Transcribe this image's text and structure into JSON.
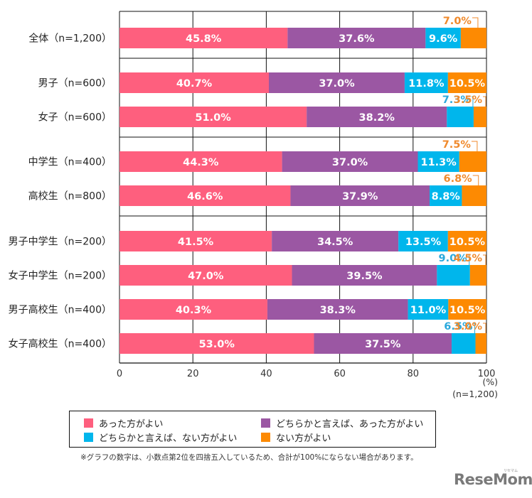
{
  "chart_data": {
    "type": "bar",
    "orientation": "horizontal",
    "stacked": true,
    "title": "",
    "xlabel": "(%)",
    "ylabel": "",
    "xlim": [
      0,
      100
    ],
    "x_ticks": [
      "0",
      "20",
      "40",
      "60",
      "80",
      "100"
    ],
    "grid": true,
    "categories": [
      "全体（n=1,200）",
      "男子（n=600）",
      "女子（n=600）",
      "中学生（n=400）",
      "高校生（n=800）",
      "男子中学生（n=200）",
      "女子中学生（n=200）",
      "男子高校生（n=400）",
      "女子高校生（n=400）"
    ],
    "groups": [
      [
        0
      ],
      [
        1,
        2
      ],
      [
        3,
        4
      ],
      [
        5,
        6,
        7,
        8
      ]
    ],
    "series": [
      {
        "name": "あった方がよい",
        "color": "#fe5f7e",
        "values": [
          45.8,
          40.7,
          51.0,
          44.3,
          46.6,
          41.5,
          47.0,
          40.3,
          53.0
        ]
      },
      {
        "name": "どちらかと言えば、あった方がよい",
        "color": "#9b57a3",
        "values": [
          37.6,
          37.0,
          38.2,
          37.0,
          37.9,
          34.5,
          39.5,
          38.3,
          37.5
        ]
      },
      {
        "name": "どちらかと言えば、ない方がよい",
        "color": "#00b6ec",
        "values": [
          9.6,
          11.8,
          7.3,
          11.3,
          8.8,
          13.5,
          9.0,
          11.0,
          6.5
        ]
      },
      {
        "name": "ない方がよい",
        "color": "#fd8a02",
        "values": [
          7.0,
          10.5,
          3.5,
          7.5,
          6.8,
          10.5,
          4.5,
          10.5,
          3.0
        ]
      }
    ],
    "label_placement": [
      [
        "in",
        "in",
        "in",
        "above"
      ],
      [
        "in",
        "in",
        "in",
        "in"
      ],
      [
        "in",
        "in",
        "above",
        "above"
      ],
      [
        "in",
        "in",
        "in",
        "above"
      ],
      [
        "in",
        "in",
        "in",
        "above"
      ],
      [
        "in",
        "in",
        "in",
        "in"
      ],
      [
        "in",
        "in",
        "above",
        "above"
      ],
      [
        "in",
        "in",
        "in",
        "in"
      ],
      [
        "in",
        "in",
        "above",
        "above"
      ]
    ],
    "legend": {
      "placement": "bottom",
      "entries": [
        "あった方がよい",
        "どちらかと言えば、あった方がよい",
        "どちらかと言えば、ない方がよい",
        "ない方がよい"
      ]
    },
    "callout_colors": {
      "light_blue_text": "#2aa9dc",
      "orange_text": "#f08a2c"
    }
  },
  "axis": {
    "unit_label": "(%)",
    "sample_label": "(n=1,200)"
  },
  "note": "※グラフの数字は、小数点第2位を四捨五入しているため、合計が100%にならない場合があります。",
  "watermark": {
    "text": "ReseMom.",
    "kana": "リセマム"
  }
}
